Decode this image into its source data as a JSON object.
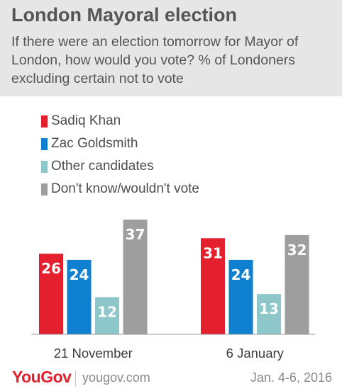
{
  "header": {
    "title": "London Mayoral election",
    "subtitle": "If there were an election tomorrow for Mayor of London, how would you vote? % of Londoners excluding certain not to vote"
  },
  "chart_data": {
    "type": "bar",
    "title": "London Mayoral election",
    "subtitle": "If there were an election tomorrow for Mayor of London, how would you vote? % of Londoners excluding certain not to vote",
    "categories": [
      "21 November",
      "6 January"
    ],
    "series": [
      {
        "name": "Sadiq Khan",
        "color": "#e5202e",
        "values": [
          26,
          31
        ]
      },
      {
        "name": "Zac Goldsmith",
        "color": "#0f7fcf",
        "values": [
          24,
          24
        ]
      },
      {
        "name": "Other candidates",
        "color": "#8ec7c9",
        "values": [
          12,
          13
        ]
      },
      {
        "name": "Don't know/wouldn't vote",
        "color": "#9e9e9e",
        "values": [
          37,
          32
        ]
      }
    ],
    "xlabel": "",
    "ylabel": "",
    "ylim": [
      0,
      37
    ],
    "grid": false,
    "legend": "top-left",
    "data_labels": true
  },
  "footer": {
    "brand": "YouGov",
    "url": "yougov.com",
    "date": "Jan. 4-6, 2016"
  }
}
